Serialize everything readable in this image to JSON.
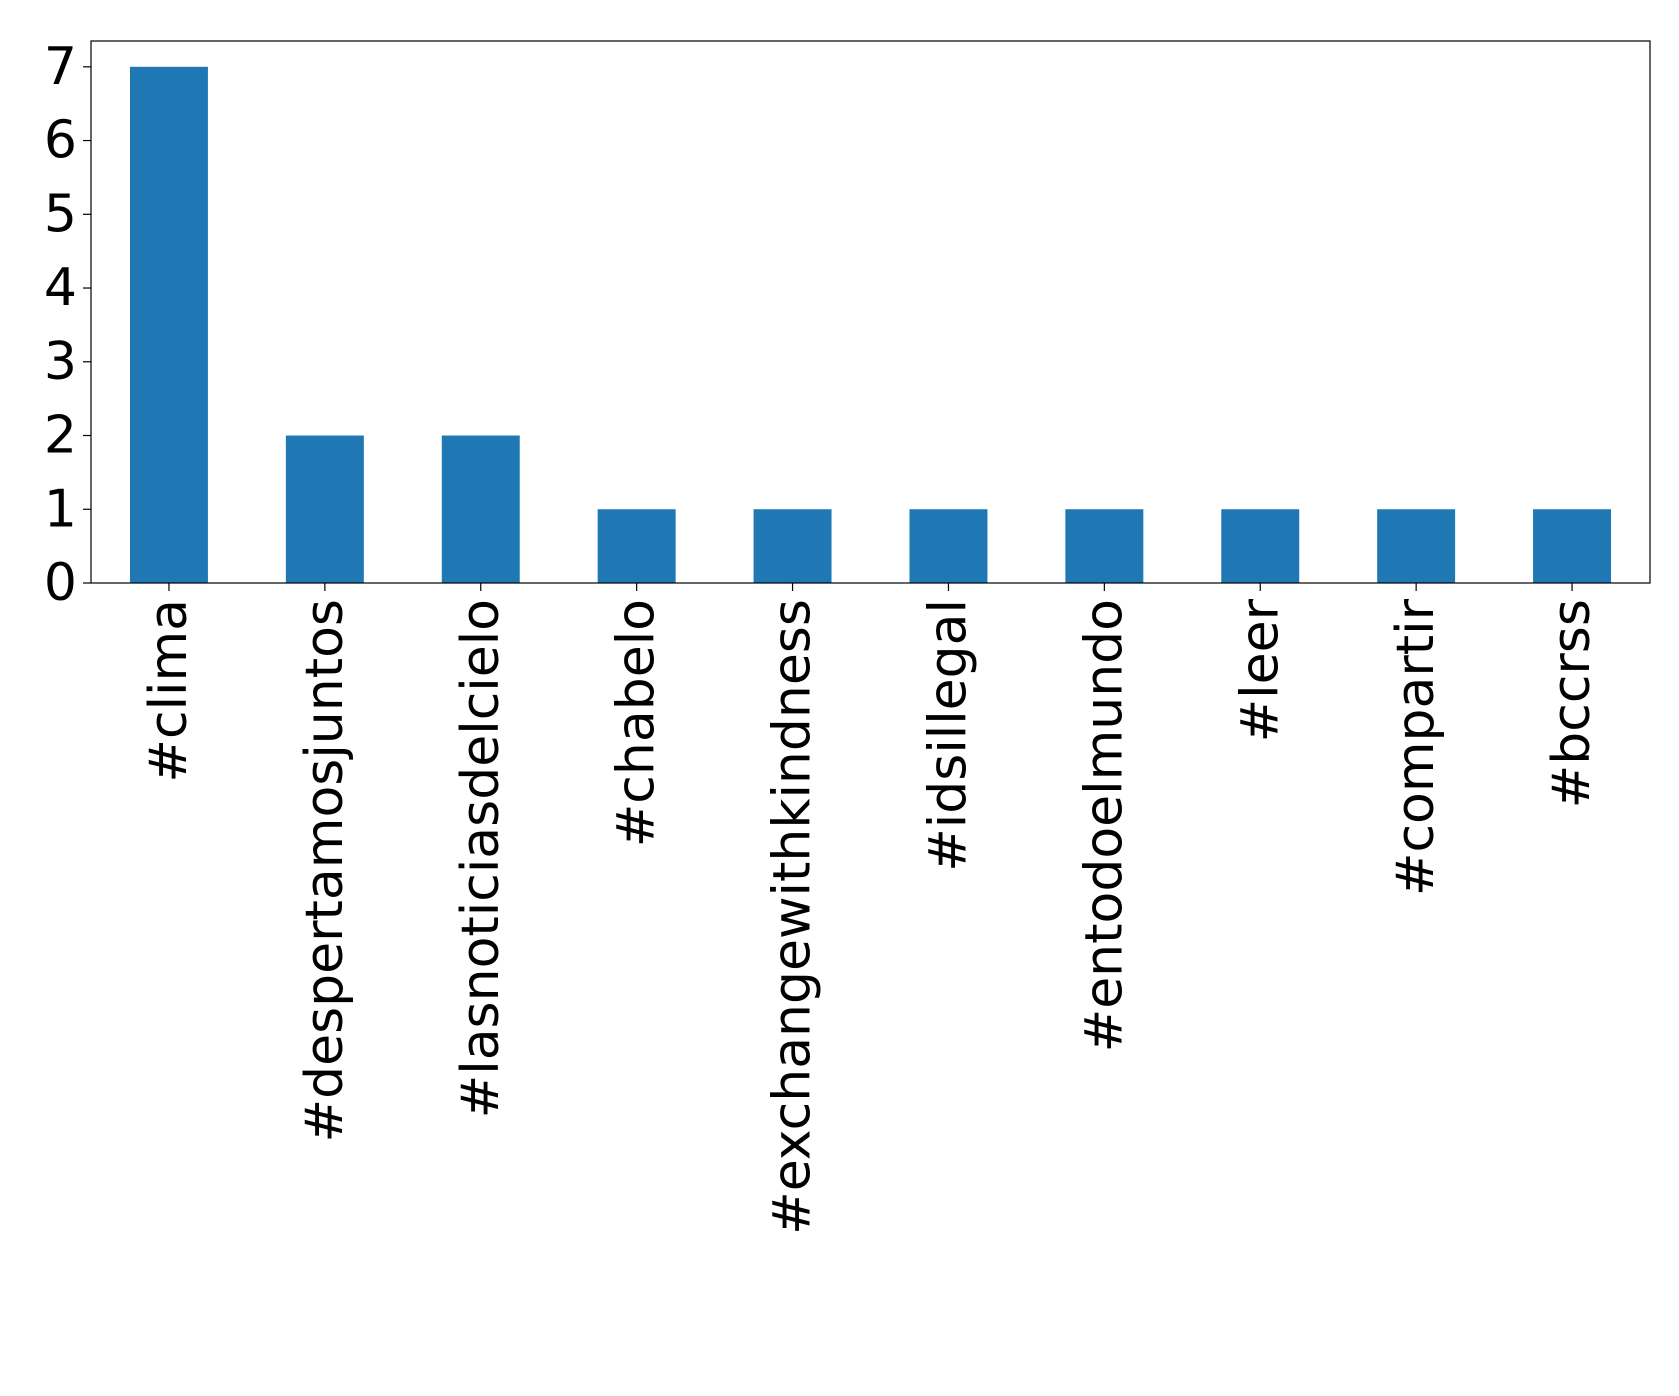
{
  "chart_data": {
    "type": "bar",
    "categories": [
      "#clima",
      "#despertamosjuntos",
      "#lasnoticiasdelcielo",
      "#chabelo",
      "#exchangewithkindness",
      "#idsillegal",
      "#entodoelmundo",
      "#leer",
      "#compartir",
      "#bccrss"
    ],
    "values": [
      7,
      2,
      2,
      1,
      1,
      1,
      1,
      1,
      1,
      1
    ],
    "title": "",
    "xlabel": "",
    "ylabel": "",
    "ylim": [
      0,
      7.35
    ],
    "yticks": [
      0,
      1,
      2,
      3,
      4,
      5,
      6,
      7
    ],
    "grid": false,
    "legend": "none",
    "bar_color": "#1f77b4"
  }
}
